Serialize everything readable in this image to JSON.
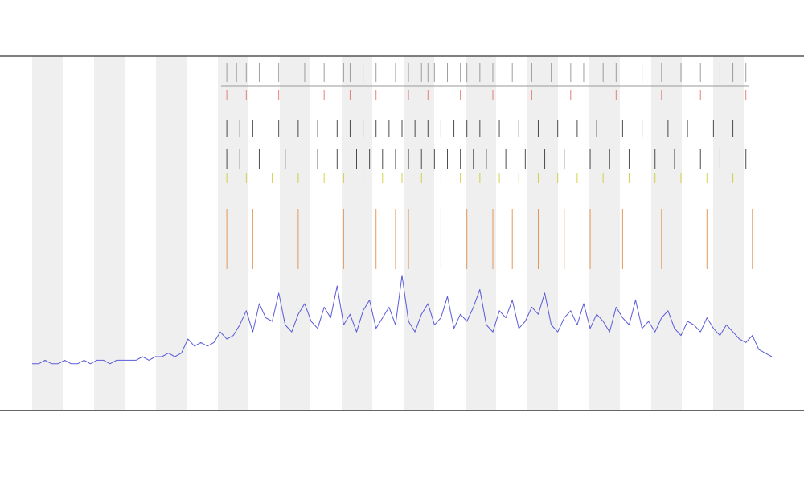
{
  "chart_data": {
    "type": "line",
    "xlim": [
      0,
      114
    ],
    "ylim": [
      0,
      100
    ],
    "series": [
      {
        "color": "#5a5ad8",
        "values": [
          13,
          13,
          14,
          13,
          13,
          14,
          13,
          13,
          14,
          13,
          14,
          14,
          13,
          14,
          14,
          14,
          14,
          15,
          14,
          15,
          15,
          16,
          15,
          16,
          20,
          18,
          19,
          18,
          19,
          22,
          20,
          21,
          24,
          28,
          22,
          30,
          26,
          25,
          33,
          24,
          22,
          27,
          30,
          25,
          23,
          29,
          26,
          35,
          24,
          27,
          22,
          28,
          31,
          23,
          26,
          29,
          24,
          38,
          25,
          22,
          27,
          30,
          24,
          26,
          32,
          23,
          27,
          25,
          29,
          34,
          24,
          22,
          28,
          26,
          31,
          23,
          25,
          29,
          27,
          33,
          24,
          22,
          26,
          28,
          24,
          30,
          23,
          27,
          25,
          22,
          29,
          26,
          24,
          31,
          23,
          25,
          22,
          26,
          28,
          23,
          21,
          25,
          24,
          22,
          26,
          23,
          21,
          24,
          22,
          20,
          19,
          21,
          17,
          16,
          15
        ]
      }
    ],
    "events": [
      {
        "color": "#888888",
        "x": [
          30,
          31.5,
          33,
          35,
          38,
          42,
          45,
          48,
          49,
          51,
          53,
          56,
          58,
          60,
          61,
          62,
          64,
          66,
          67,
          69,
          71,
          74,
          77,
          80,
          83,
          85,
          88,
          90,
          94,
          97,
          100,
          103,
          106,
          108,
          110
        ]
      },
      {
        "color": "#e06060",
        "x": [
          30,
          33,
          38,
          45,
          49,
          53,
          58,
          61,
          66,
          71,
          77,
          83,
          90,
          97,
          103,
          110
        ]
      },
      {
        "color": "#222222",
        "x": [
          30,
          32,
          34,
          38,
          41,
          44,
          47,
          49,
          51,
          53,
          55,
          57,
          59,
          61,
          63,
          65,
          67,
          69,
          72,
          75,
          78,
          81,
          84,
          87,
          91,
          94,
          98,
          101,
          105,
          108
        ]
      },
      {
        "color": "#222222",
        "x": [
          30,
          32,
          35,
          39,
          44,
          47,
          50,
          52,
          54,
          56,
          58,
          60,
          62,
          64,
          66,
          68,
          70,
          73,
          76,
          79,
          82,
          86,
          89,
          92,
          96,
          99,
          103,
          106,
          110
        ]
      },
      {
        "color": "#c8c820",
        "x": [
          30,
          33,
          37,
          41,
          45,
          48,
          51,
          54,
          57,
          60,
          63,
          66,
          69,
          72,
          75,
          78,
          81,
          84,
          88,
          92,
          96,
          100,
          104,
          108
        ]
      },
      {
        "color": "#e08030",
        "x": [
          30,
          34,
          41,
          48,
          53,
          56,
          58,
          63,
          67,
          71,
          74,
          78,
          82,
          86,
          91,
          97,
          104,
          111
        ]
      }
    ]
  }
}
